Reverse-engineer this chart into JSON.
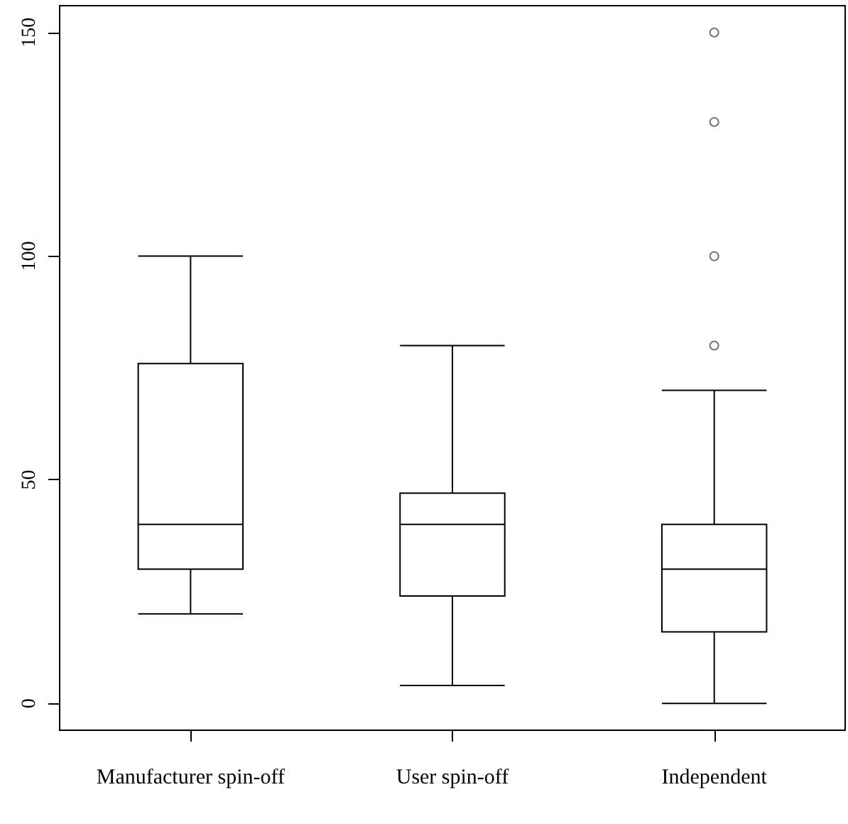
{
  "chart_data": {
    "type": "box",
    "categories": [
      "Manufacturer spin-off",
      "User spin-off",
      "Independent"
    ],
    "boxes": [
      {
        "low": 20,
        "q1": 30,
        "median": 40,
        "q3": 76,
        "high": 100
      },
      {
        "low": 4,
        "q1": 24,
        "median": 40,
        "q3": 47,
        "high": 80
      },
      {
        "low": 0,
        "q1": 16,
        "median": 30,
        "q3": 40,
        "high": 70,
        "outliers": [
          80,
          100,
          130,
          150
        ]
      }
    ],
    "ylim": [
      -6,
      156
    ],
    "yticks": [
      0,
      50,
      100,
      150
    ],
    "grid": false
  }
}
